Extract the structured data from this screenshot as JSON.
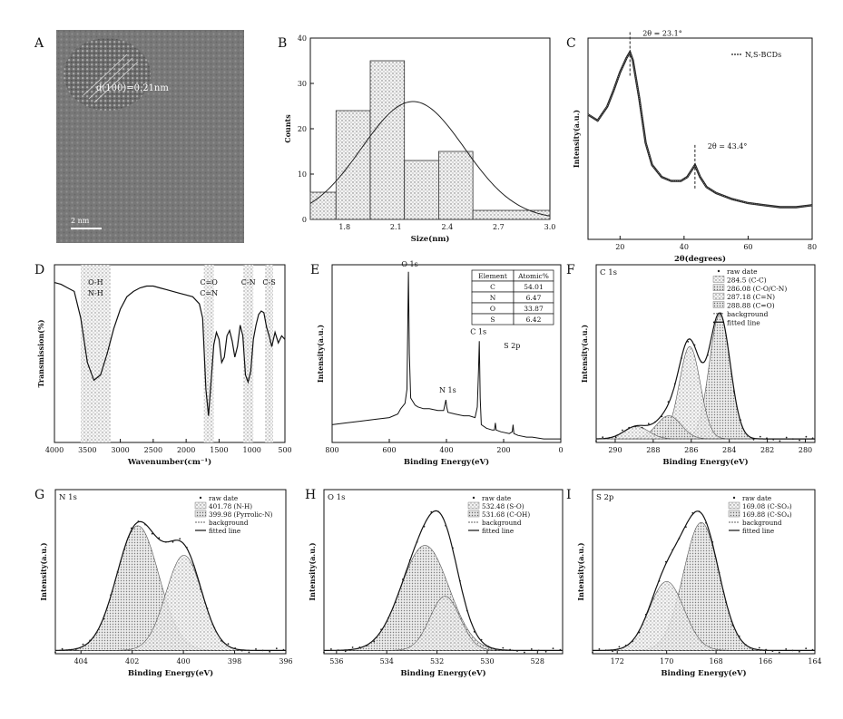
{
  "panels": {
    "A": {
      "letter": "A",
      "lattice_label": "d(100)=0.21nm",
      "scale_label": "2 nm"
    },
    "B": {
      "letter": "B"
    },
    "C": {
      "letter": "C"
    },
    "D": {
      "letter": "D"
    },
    "E": {
      "letter": "E"
    },
    "F": {
      "letter": "F"
    },
    "G": {
      "letter": "G"
    },
    "H": {
      "letter": "H"
    },
    "I": {
      "letter": "I"
    }
  },
  "chart_data": [
    {
      "id": "B",
      "type": "bar",
      "title": "",
      "xlabel": "Size(nm)",
      "ylabel": "Counts",
      "xlim": [
        1.6,
        3.0
      ],
      "ylim": [
        0,
        40
      ],
      "xticks": [
        "1.8",
        "2.1",
        "2.4",
        "2.7",
        "3.0"
      ],
      "yticks": [
        "0",
        "10",
        "20",
        "30",
        "40"
      ],
      "bins": [
        [
          1.6,
          1.75
        ],
        [
          1.75,
          1.95
        ],
        [
          1.95,
          2.15
        ],
        [
          2.15,
          2.35
        ],
        [
          2.35,
          2.55
        ],
        [
          2.55,
          3.0
        ]
      ],
      "values": [
        6,
        24,
        35,
        13,
        15,
        2
      ],
      "fit": {
        "type": "gaussian",
        "mean": 2.2,
        "sigma": 0.3,
        "peak": 26
      }
    },
    {
      "id": "C",
      "type": "line",
      "title": "",
      "xlabel": "2θ(degrees)",
      "ylabel": "Intensity(a.u.)",
      "xlim": [
        10,
        80
      ],
      "ylim": [
        0,
        1
      ],
      "xticks": [
        "20",
        "40",
        "60",
        "80"
      ],
      "legend": "N,S-BCDs",
      "annotations": [
        {
          "text": "2θ = 23.1°",
          "x": 23.1
        },
        {
          "text": "2θ = 43.4°",
          "x": 43.4
        }
      ],
      "series": [
        {
          "x": [
            10,
            13,
            16,
            18,
            20,
            22,
            23.1,
            24,
            26,
            28,
            30,
            33,
            36,
            39,
            41,
            43.4,
            45,
            47,
            50,
            55,
            60,
            65,
            70,
            75,
            80
          ],
          "y": [
            0.62,
            0.59,
            0.66,
            0.74,
            0.83,
            0.9,
            0.93,
            0.89,
            0.7,
            0.48,
            0.37,
            0.31,
            0.29,
            0.29,
            0.31,
            0.37,
            0.31,
            0.26,
            0.23,
            0.2,
            0.18,
            0.17,
            0.16,
            0.16,
            0.17
          ]
        }
      ]
    },
    {
      "id": "D",
      "type": "line",
      "title": "",
      "xlabel": "Wavenumber(cm⁻¹)",
      "ylabel": "Transmission(%)",
      "xlim": [
        4000,
        500
      ],
      "ylim": [
        0,
        100
      ],
      "xticks": [
        "4000",
        "3500",
        "3000",
        "2500",
        "2000",
        "1500",
        "1000",
        "500"
      ],
      "bands": [
        {
          "label": "O-H N-H",
          "from": 3600,
          "to": 3150
        },
        {
          "label": "C=O C=N",
          "from": 1730,
          "to": 1580
        },
        {
          "label": "C-N",
          "from": 1130,
          "to": 980
        },
        {
          "label": "C-S",
          "from": 800,
          "to": 680
        }
      ],
      "series": [
        {
          "x": [
            4000,
            3900,
            3800,
            3700,
            3600,
            3500,
            3400,
            3300,
            3200,
            3100,
            3000,
            2900,
            2800,
            2700,
            2600,
            2500,
            2400,
            2300,
            2200,
            2100,
            2000,
            1900,
            1800,
            1750,
            1700,
            1660,
            1620,
            1580,
            1540,
            1500,
            1460,
            1420,
            1380,
            1340,
            1300,
            1260,
            1220,
            1180,
            1140,
            1100,
            1060,
            1020,
            980,
            940,
            900,
            860,
            820,
            780,
            740,
            700,
            650,
            600,
            550,
            500
          ],
          "y": [
            90,
            89,
            87,
            85,
            70,
            45,
            35,
            38,
            50,
            64,
            75,
            82,
            85,
            87,
            88,
            88,
            87,
            86,
            85,
            84,
            83,
            82,
            78,
            70,
            30,
            15,
            35,
            55,
            62,
            58,
            45,
            48,
            60,
            63,
            57,
            48,
            54,
            66,
            60,
            38,
            34,
            40,
            58,
            66,
            72,
            74,
            73,
            65,
            60,
            54,
            62,
            56,
            60,
            58
          ]
        }
      ]
    },
    {
      "id": "E",
      "type": "line",
      "title": "",
      "xlabel": "Binding Energy(eV)",
      "ylabel": "Intensity(a.u.)",
      "xlim": [
        800,
        0
      ],
      "ylim": [
        0,
        1
      ],
      "xticks": [
        "800",
        "600",
        "400",
        "200",
        "0"
      ],
      "peak_labels": [
        {
          "text": "O 1s",
          "x": 532
        },
        {
          "text": "N 1s",
          "x": 400
        },
        {
          "text": "C 1s",
          "x": 285
        },
        {
          "text": "S 2p",
          "x": 168
        }
      ],
      "table": {
        "headers": [
          "Element",
          "Atomic%"
        ],
        "rows": [
          [
            "C",
            "54.01"
          ],
          [
            "N",
            "6.47"
          ],
          [
            "O",
            "33.87"
          ],
          [
            "S",
            "6.42"
          ]
        ]
      },
      "series": [
        {
          "x": [
            800,
            750,
            700,
            650,
            600,
            570,
            560,
            545,
            538,
            533,
            530,
            525,
            510,
            500,
            480,
            460,
            430,
            410,
            402,
            399,
            395,
            370,
            340,
            320,
            300,
            292,
            288,
            285,
            282,
            278,
            260,
            240,
            232,
            229,
            226,
            210,
            180,
            170,
            167,
            164,
            150,
            120,
            100,
            60,
            30,
            0
          ],
          "y": [
            0.1,
            0.11,
            0.12,
            0.13,
            0.14,
            0.16,
            0.19,
            0.22,
            0.3,
            0.96,
            0.5,
            0.25,
            0.21,
            0.2,
            0.19,
            0.19,
            0.18,
            0.18,
            0.24,
            0.2,
            0.17,
            0.16,
            0.15,
            0.15,
            0.14,
            0.2,
            0.4,
            0.57,
            0.25,
            0.1,
            0.08,
            0.07,
            0.07,
            0.11,
            0.07,
            0.06,
            0.05,
            0.06,
            0.1,
            0.05,
            0.04,
            0.03,
            0.03,
            0.02,
            0.02,
            0.02
          ]
        }
      ]
    },
    {
      "id": "F",
      "type": "line",
      "title": "C 1s",
      "xlabel": "Binding Energy(eV)",
      "ylabel": "Intensity(a.u.)",
      "xlim": [
        291,
        279.5
      ],
      "ylim": [
        0,
        1
      ],
      "xticks": [
        "290",
        "288",
        "286",
        "284",
        "282",
        "280"
      ],
      "legend": [
        "raw date",
        "284.5 (C-C)",
        "286.08 (C-O/C-N)",
        "287.18 (C=N)",
        "288.88 (C=O)",
        "background",
        "fitted line"
      ],
      "components": [
        {
          "center": 284.5,
          "height": 0.7,
          "sigma": 0.55
        },
        {
          "center": 286.08,
          "height": 0.52,
          "sigma": 0.55
        },
        {
          "center": 287.18,
          "height": 0.13,
          "sigma": 0.65
        },
        {
          "center": 288.88,
          "height": 0.07,
          "sigma": 0.65
        }
      ],
      "background": 0.02
    },
    {
      "id": "G",
      "type": "line",
      "title": "N 1s",
      "xlabel": "Binding Energy(eV)",
      "ylabel": "Intensity(a.u.)",
      "xlim": [
        405,
        396
      ],
      "ylim": [
        0,
        1
      ],
      "xticks": [
        "404",
        "402",
        "400",
        "398",
        "396"
      ],
      "legend": [
        "raw date",
        "401.78 (N-H)",
        "399.98 (Pyrrolic-N)",
        "background",
        "fitted line"
      ],
      "components": [
        {
          "center": 401.78,
          "height": 0.76,
          "sigma": 0.82
        },
        {
          "center": 399.98,
          "height": 0.58,
          "sigma": 0.7
        }
      ],
      "background": 0.02
    },
    {
      "id": "H",
      "type": "line",
      "title": "O 1s",
      "xlabel": "Binding Energy(eV)",
      "ylabel": "Intensity(a.u.)",
      "xlim": [
        536.5,
        527
      ],
      "ylim": [
        0,
        1
      ],
      "xticks": [
        "536",
        "534",
        "532",
        "530",
        "528"
      ],
      "legend": [
        "raw date",
        "532.48 (S-O)",
        "531.68 (C-OH)",
        "background",
        "fitted line"
      ],
      "components": [
        {
          "center": 532.48,
          "height": 0.64,
          "sigma": 0.95
        },
        {
          "center": 531.68,
          "height": 0.33,
          "sigma": 0.6
        }
      ],
      "background": 0.02
    },
    {
      "id": "I",
      "type": "line",
      "title": "S 2p",
      "xlabel": "Binding Energy(eV)",
      "ylabel": "Intensity(a.u.)",
      "xlim": [
        173,
        164
      ],
      "ylim": [
        0,
        1
      ],
      "xticks": [
        "172",
        "170",
        "168",
        "166",
        "164"
      ],
      "legend": [
        "raw date",
        "169.08 (C-SO₃)",
        "169.88 (C-SO₄)",
        "background",
        "fitted line"
      ],
      "components": [
        {
          "center": 168.6,
          "height": 0.78,
          "sigma": 0.72
        },
        {
          "center": 170.0,
          "height": 0.42,
          "sigma": 0.7
        }
      ],
      "background": 0.02
    }
  ]
}
